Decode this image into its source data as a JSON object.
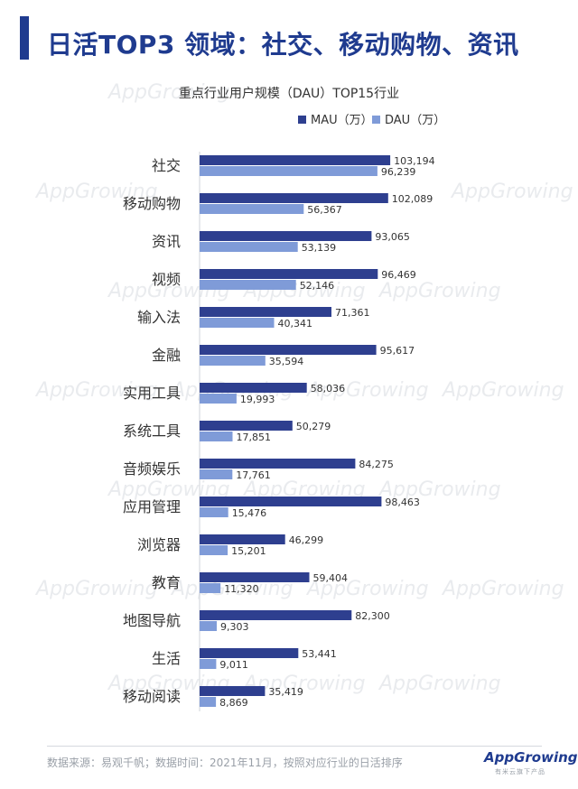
{
  "page": {
    "title": "日活TOP3 领域：社交、移动购物、资讯",
    "source": "数据来源：易观千帆；数据时间：2021年11月，按照对应行业的日活排序",
    "logo": "AppGrowing",
    "logo_sub": "有米云旗下产品",
    "watermark": "AppGrowing"
  },
  "colors": {
    "title": "#1f3b8f",
    "mau": "#2e3f8f",
    "dau": "#7f9bd8",
    "label": "#333333"
  },
  "chart_data": {
    "type": "bar",
    "orientation": "horizontal",
    "title": "重点行业用户规模（DAU）TOP15行业",
    "legend_position": "top-right",
    "grid": false,
    "xlim": [
      0,
      120000
    ],
    "categories": [
      "社交",
      "移动购物",
      "资讯",
      "视频",
      "输入法",
      "金融",
      "实用工具",
      "系统工具",
      "音频娱乐",
      "应用管理",
      "浏览器",
      "教育",
      "地图导航",
      "生活",
      "移动阅读"
    ],
    "series": [
      {
        "name": "MAU（万）",
        "values": [
          103194,
          102089,
          93065,
          96469,
          71361,
          95617,
          58036,
          50279,
          84275,
          98463,
          46299,
          59404,
          82300,
          53441,
          35419
        ],
        "labels": [
          "103,194",
          "102,089",
          "93,065",
          "96,469",
          "71,361",
          "95,617",
          "58,036",
          "50,279",
          "84,275",
          "98,463",
          "46,299",
          "59,404",
          "82,300",
          "53,441",
          "35,419"
        ]
      },
      {
        "name": "DAU（万）",
        "values": [
          96239,
          56367,
          53139,
          52146,
          40341,
          35594,
          19993,
          17851,
          17761,
          15476,
          15201,
          11320,
          9303,
          9011,
          8869
        ],
        "labels": [
          "96,239",
          "56,367",
          "53,139",
          "52,146",
          "40,341",
          "35,594",
          "19,993",
          "17,851",
          "17,761",
          "15,476",
          "15,201",
          "11,320",
          "9,303",
          "9,011",
          "8,869"
        ]
      }
    ]
  }
}
